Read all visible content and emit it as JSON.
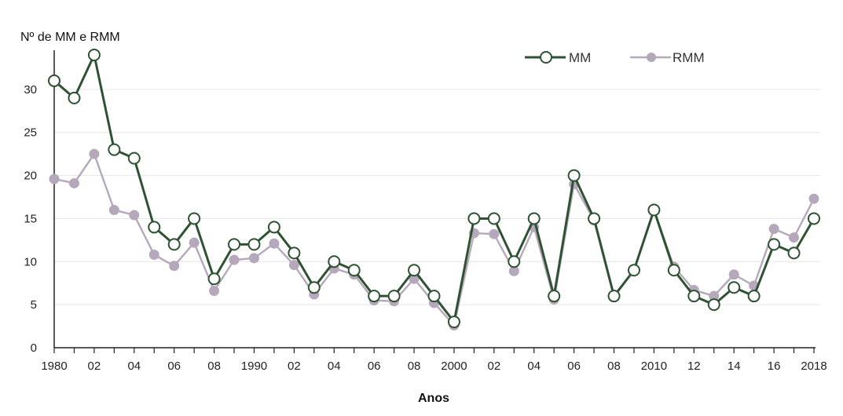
{
  "chart_data": {
    "type": "line",
    "ylabel": "Nº de MM e RMM",
    "xlabel": "Anos",
    "ylim": [
      0,
      34
    ],
    "y_ticks": [
      0,
      5,
      10,
      15,
      20,
      25,
      30
    ],
    "grid": "horizontal",
    "legend_position": "top-right",
    "x": [
      1980,
      1981,
      1982,
      1983,
      1984,
      1985,
      1986,
      1987,
      1988,
      1989,
      1990,
      1991,
      1992,
      1993,
      1994,
      1995,
      1996,
      1997,
      1998,
      1999,
      2000,
      2001,
      2002,
      2003,
      2004,
      2005,
      2006,
      2007,
      2008,
      2009,
      2010,
      2011,
      2012,
      2013,
      2014,
      2015,
      2016,
      2017,
      2018
    ],
    "x_tick_values": [
      1980,
      1982,
      1984,
      1986,
      1988,
      1990,
      1992,
      1994,
      1996,
      1998,
      2000,
      2002,
      2004,
      2006,
      2008,
      2010,
      2012,
      2014,
      2016,
      2018
    ],
    "x_tick_labels": [
      "1980",
      "02",
      "04",
      "06",
      "08",
      "1990",
      "02",
      "04",
      "06",
      "08",
      "2000",
      "02",
      "04",
      "06",
      "08",
      "2010",
      "12",
      "14",
      "16",
      "2018"
    ],
    "series": [
      {
        "name": "MM",
        "color": "#2f5233",
        "marker": "open-circle",
        "values": [
          31,
          29,
          34,
          23,
          22,
          14,
          12,
          15,
          8,
          12,
          12,
          14,
          11,
          7,
          10,
          9,
          6,
          6,
          9,
          6,
          3,
          15,
          15,
          10,
          15,
          6,
          20,
          15,
          6,
          9,
          16,
          9,
          6,
          5,
          7,
          6,
          12,
          11,
          15
        ]
      },
      {
        "name": "RMM",
        "color": "#b5a8bb",
        "marker": "filled-circle",
        "values": [
          19.6,
          19.1,
          22.5,
          16,
          15.4,
          10.8,
          9.5,
          12.2,
          6.6,
          10.2,
          10.4,
          12.1,
          9.6,
          6.2,
          9.2,
          8.5,
          5.5,
          5.4,
          8,
          5.2,
          2.6,
          13.3,
          13.2,
          8.9,
          14,
          5.6,
          19,
          14.8,
          5.9,
          9,
          16,
          9.4,
          6.7,
          6,
          8.5,
          7.2,
          13.8,
          12.8,
          17.3
        ]
      }
    ]
  }
}
